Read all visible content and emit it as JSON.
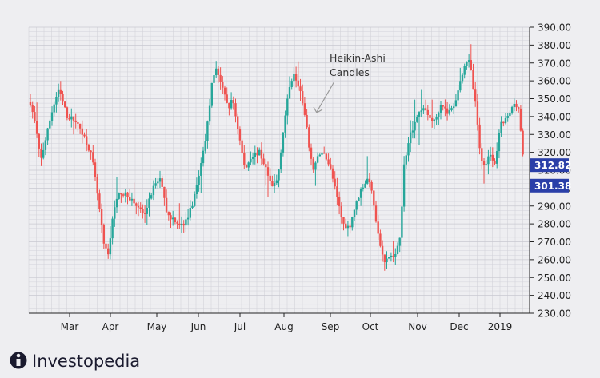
{
  "chart_data": {
    "type": "candlestick",
    "title": "",
    "xlabel": "",
    "ylabel": "",
    "ylim": [
      230,
      390
    ],
    "y_ticks": [
      "230.00",
      "240.00",
      "250.00",
      "260.00",
      "270.00",
      "280.00",
      "290.00",
      "300.00",
      "310.00",
      "320.00",
      "330.00",
      "340.00",
      "350.00",
      "360.00",
      "370.00",
      "380.00",
      "390.00"
    ],
    "x_ticks": [
      "Mar",
      "Apr",
      "May",
      "Jun",
      "Jul",
      "Aug",
      "Sep",
      "Oct",
      "Nov",
      "Dec",
      "2019"
    ],
    "grid": true,
    "price_labels": [
      "312.82",
      "301.38"
    ],
    "price_label_values": [
      312.82,
      301.38
    ],
    "annotation": [
      "Heikin-Ashi",
      "Candles"
    ],
    "colors": {
      "up": "#26a69a",
      "down": "#ef5350",
      "badge": "#2a3fa8",
      "grid": "#d3d3da",
      "axis": "#222222"
    },
    "anchors": [
      {
        "t": 0,
        "v": 348
      },
      {
        "t": 5,
        "v": 335
      },
      {
        "t": 10,
        "v": 315
      },
      {
        "t": 22,
        "v": 345
      },
      {
        "t": 28,
        "v": 355
      },
      {
        "t": 36,
        "v": 340
      },
      {
        "t": 44,
        "v": 338
      },
      {
        "t": 52,
        "v": 330
      },
      {
        "t": 60,
        "v": 318
      },
      {
        "t": 66,
        "v": 295
      },
      {
        "t": 72,
        "v": 268
      },
      {
        "t": 76,
        "v": 262
      },
      {
        "t": 82,
        "v": 290
      },
      {
        "t": 88,
        "v": 298
      },
      {
        "t": 96,
        "v": 295
      },
      {
        "t": 104,
        "v": 290
      },
      {
        "t": 112,
        "v": 285
      },
      {
        "t": 120,
        "v": 300
      },
      {
        "t": 128,
        "v": 305
      },
      {
        "t": 134,
        "v": 285
      },
      {
        "t": 142,
        "v": 282
      },
      {
        "t": 150,
        "v": 278
      },
      {
        "t": 158,
        "v": 290
      },
      {
        "t": 166,
        "v": 310
      },
      {
        "t": 172,
        "v": 330
      },
      {
        "t": 178,
        "v": 360
      },
      {
        "t": 182,
        "v": 368
      },
      {
        "t": 188,
        "v": 355
      },
      {
        "t": 194,
        "v": 345
      },
      {
        "t": 198,
        "v": 350
      },
      {
        "t": 204,
        "v": 330
      },
      {
        "t": 210,
        "v": 310
      },
      {
        "t": 216,
        "v": 318
      },
      {
        "t": 224,
        "v": 320
      },
      {
        "t": 230,
        "v": 312
      },
      {
        "t": 236,
        "v": 300
      },
      {
        "t": 242,
        "v": 305
      },
      {
        "t": 248,
        "v": 335
      },
      {
        "t": 254,
        "v": 358
      },
      {
        "t": 258,
        "v": 365
      },
      {
        "t": 264,
        "v": 355
      },
      {
        "t": 270,
        "v": 335
      },
      {
        "t": 276,
        "v": 310
      },
      {
        "t": 282,
        "v": 318
      },
      {
        "t": 288,
        "v": 320
      },
      {
        "t": 294,
        "v": 310
      },
      {
        "t": 300,
        "v": 295
      },
      {
        "t": 306,
        "v": 280
      },
      {
        "t": 312,
        "v": 278
      },
      {
        "t": 318,
        "v": 290
      },
      {
        "t": 324,
        "v": 300
      },
      {
        "t": 330,
        "v": 305
      },
      {
        "t": 334,
        "v": 300
      },
      {
        "t": 340,
        "v": 275
      },
      {
        "t": 346,
        "v": 258
      },
      {
        "t": 352,
        "v": 262
      },
      {
        "t": 358,
        "v": 262
      },
      {
        "t": 362,
        "v": 275
      },
      {
        "t": 366,
        "v": 315
      },
      {
        "t": 372,
        "v": 330
      },
      {
        "t": 378,
        "v": 340
      },
      {
        "t": 384,
        "v": 345
      },
      {
        "t": 390,
        "v": 340
      },
      {
        "t": 396,
        "v": 337
      },
      {
        "t": 402,
        "v": 348
      },
      {
        "t": 408,
        "v": 342
      },
      {
        "t": 414,
        "v": 345
      },
      {
        "t": 420,
        "v": 358
      },
      {
        "t": 426,
        "v": 372
      },
      {
        "t": 430,
        "v": 370
      },
      {
        "t": 436,
        "v": 345
      },
      {
        "t": 440,
        "v": 320
      },
      {
        "t": 444,
        "v": 312
      },
      {
        "t": 450,
        "v": 320
      },
      {
        "t": 454,
        "v": 310
      },
      {
        "t": 460,
        "v": 335
      },
      {
        "t": 468,
        "v": 340
      },
      {
        "t": 474,
        "v": 348
      },
      {
        "t": 478,
        "v": 345
      },
      {
        "t": 482,
        "v": 318
      }
    ]
  },
  "brand": {
    "name": "Investopedia"
  }
}
